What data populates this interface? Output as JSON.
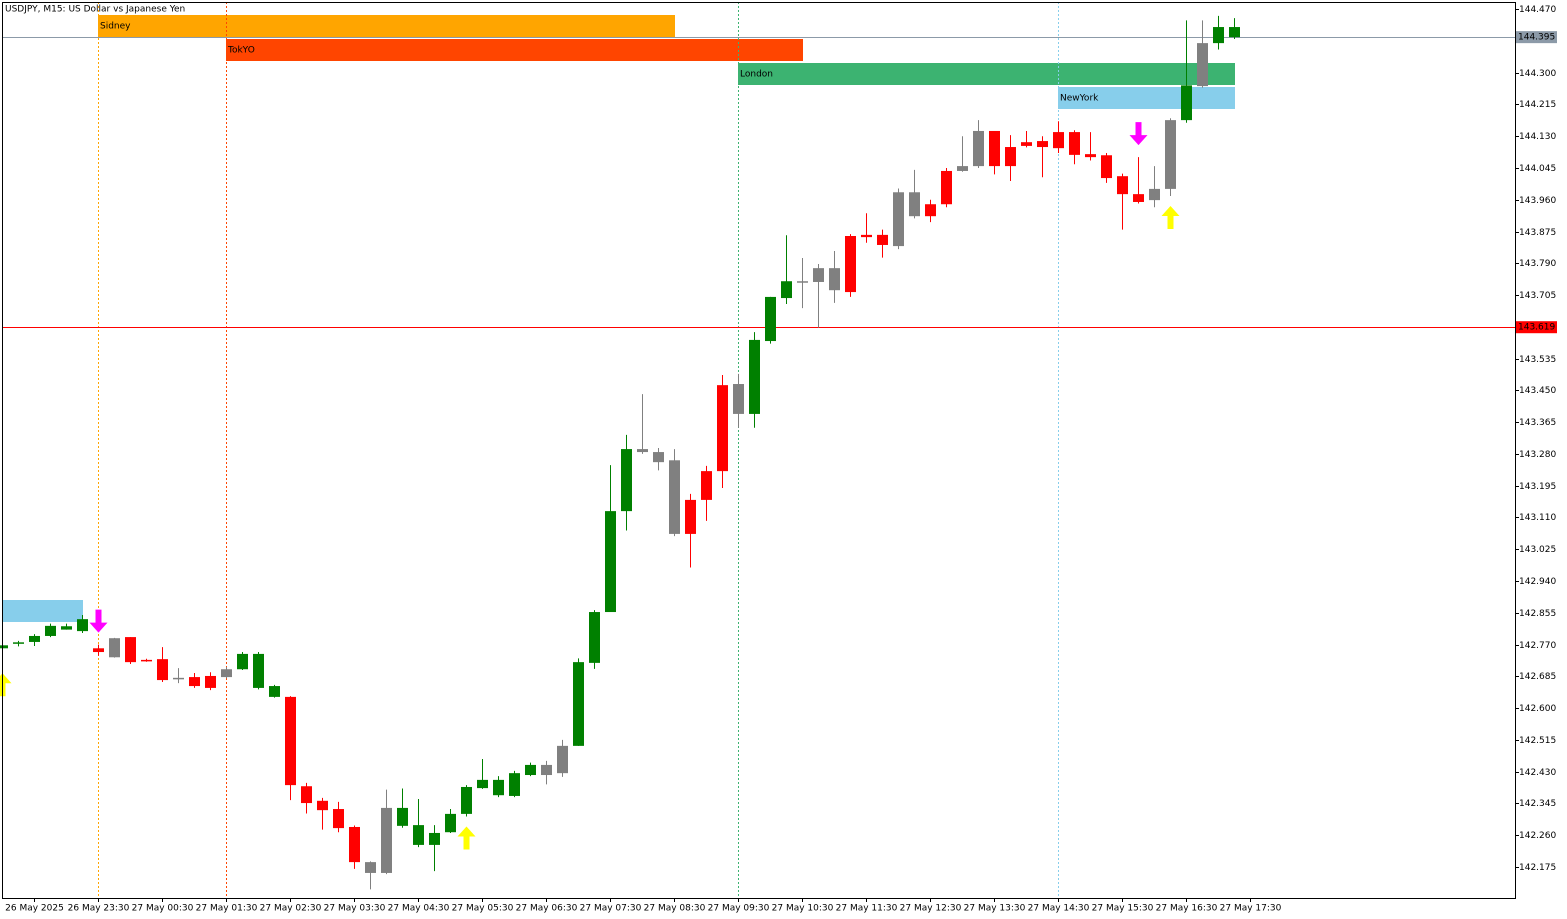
{
  "chart_data": {
    "type": "candlestick",
    "title": "USDJPY, M15:  US Dollar vs Japanese Yen",
    "categories": [
      null,
      null,
      "26 May 2025",
      null,
      null,
      null,
      "26 May 23:30",
      null,
      null,
      null,
      "27 May 00:30",
      null,
      null,
      null,
      "27 May 01:30",
      null,
      null,
      null,
      "27 May 02:30",
      null,
      null,
      null,
      "27 May 03:30",
      null,
      null,
      null,
      "27 May 04:30",
      null,
      null,
      null,
      "27 May 05:30",
      null,
      null,
      null,
      "27 May 06:30",
      null,
      null,
      null,
      "27 May 07:30",
      null,
      null,
      null,
      "27 May 08:30",
      null,
      null,
      null,
      "27 May 09:30",
      null,
      null,
      null,
      "27 May 10:30",
      null,
      null,
      null,
      "27 May 11:30",
      null,
      null,
      null,
      "27 May 12:30",
      null,
      null,
      null,
      "27 May 13:30",
      null,
      null,
      null,
      "27 May 14:30",
      null,
      null,
      null,
      "27 May 15:30",
      null,
      null,
      null,
      "27 May 16:30",
      null,
      null,
      null,
      "27 May 17:30"
    ],
    "open": [
      142.76,
      142.772,
      142.777,
      142.793,
      142.81,
      142.806,
      142.76,
      142.787,
      142.79,
      142.729,
      142.731,
      142.681,
      142.683,
      142.686,
      142.683,
      142.704,
      142.654,
      142.63,
      142.63,
      142.391,
      142.352,
      142.33,
      142.282,
      142.188,
      142.159,
      142.285,
      142.234,
      142.234,
      142.268,
      142.317,
      142.386,
      142.367,
      142.365,
      142.421,
      142.448,
      142.426,
      142.499,
      142.721,
      142.857,
      143.127,
      143.293,
      143.285,
      143.263,
      143.157,
      143.234,
      143.464,
      143.467,
      143.387,
      143.582,
      143.697,
      143.742,
      143.74,
      143.777,
      143.863,
      143.866,
      143.866,
      143.836,
      143.98,
      143.948,
      144.037,
      144.05,
      144.05,
      144.144,
      144.101,
      144.114,
      144.117,
      144.141,
      144.141,
      144.082,
      144.079,
      144.023,
      143.975,
      143.959,
      143.989,
      144.173,
      144.264,
      144.379,
      144.422,
      null
    ],
    "high": [
      142.775,
      142.78,
      142.798,
      142.826,
      142.826,
      142.849,
      142.77,
      142.788,
      142.79,
      142.732,
      142.763,
      142.707,
      142.694,
      142.696,
      142.71,
      142.75,
      142.75,
      142.662,
      142.632,
      142.4,
      142.36,
      142.349,
      142.286,
      142.19,
      142.382,
      142.385,
      142.357,
      142.287,
      142.33,
      142.394,
      142.464,
      142.418,
      142.432,
      142.454,
      142.459,
      142.515,
      142.733,
      142.862,
      143.25,
      143.331,
      143.44,
      143.296,
      143.293,
      143.173,
      143.248,
      143.491,
      143.494,
      143.606,
      143.7,
      143.865,
      143.804,
      143.788,
      143.823,
      143.868,
      143.924,
      143.88,
      143.99,
      144.04,
      143.96,
      144.045,
      144.13,
      144.173,
      144.144,
      144.133,
      144.144,
      144.13,
      144.17,
      144.146,
      144.141,
      144.085,
      144.03,
      144.074,
      144.05,
      144.178,
      144.44,
      144.44,
      144.452,
      144.446,
      null
    ],
    "low": [
      142.72,
      142.765,
      142.766,
      142.79,
      142.81,
      142.801,
      142.74,
      142.735,
      142.718,
      142.724,
      142.67,
      142.667,
      142.654,
      142.648,
      142.68,
      142.702,
      142.65,
      142.628,
      142.354,
      142.318,
      142.275,
      142.268,
      142.17,
      142.115,
      142.156,
      142.28,
      142.228,
      142.164,
      142.266,
      142.31,
      142.384,
      142.362,
      142.362,
      142.418,
      142.396,
      142.416,
      142.499,
      142.705,
      142.857,
      143.075,
      143.28,
      143.236,
      143.06,
      142.976,
      143.101,
      143.189,
      143.35,
      143.35,
      143.575,
      143.681,
      143.67,
      143.618,
      143.684,
      143.7,
      143.845,
      143.805,
      143.828,
      143.91,
      143.9,
      143.94,
      144.035,
      144.045,
      144.028,
      144.01,
      144.1,
      144.02,
      144.085,
      144.055,
      144.065,
      144.005,
      143.88,
      143.95,
      143.94,
      143.97,
      144.166,
      144.26,
      144.362,
      144.39,
      null
    ],
    "close": [
      142.768,
      142.776,
      142.793,
      142.82,
      142.819,
      142.838,
      142.75,
      142.736,
      142.723,
      142.726,
      142.675,
      142.679,
      142.659,
      142.654,
      142.704,
      142.745,
      142.745,
      142.659,
      142.394,
      142.346,
      142.327,
      142.279,
      142.188,
      142.159,
      142.333,
      142.333,
      142.287,
      142.266,
      142.317,
      142.389,
      142.408,
      142.408,
      142.426,
      142.448,
      142.421,
      142.499,
      142.723,
      142.857,
      143.127,
      143.293,
      143.285,
      143.258,
      143.066,
      143.066,
      143.157,
      143.234,
      143.387,
      143.585,
      143.7,
      143.742,
      143.74,
      143.777,
      143.718,
      143.713,
      143.86,
      143.839,
      143.98,
      143.916,
      143.916,
      143.948,
      144.037,
      144.144,
      144.05,
      144.05,
      144.104,
      144.101,
      144.098,
      144.08,
      144.074,
      144.018,
      143.975,
      143.954,
      143.989,
      144.173,
      144.266,
      144.379,
      144.422,
      144.395,
      null
    ],
    "colors": [
      "#008000",
      "#008000",
      "#008000",
      "#008000",
      "#008000",
      "#008000",
      "#ff0000",
      "#808080",
      "#ff0000",
      "#ff0000",
      "#ff0000",
      "#808080",
      "#ff0000",
      "#ff0000",
      "#808080",
      "#008000",
      "#008000",
      "#008000",
      "#ff0000",
      "#ff0000",
      "#ff0000",
      "#ff0000",
      "#ff0000",
      "#808080",
      "#808080",
      "#008000",
      "#008000",
      "#008000",
      "#008000",
      "#008000",
      "#008000",
      "#008000",
      "#008000",
      "#008000",
      "#808080",
      "#808080",
      "#008000",
      "#008000",
      "#008000",
      "#008000",
      "#808080",
      "#808080",
      "#808080",
      "#ff0000",
      "#ff0000",
      "#ff0000",
      "#808080",
      "#008000",
      "#008000",
      "#008000",
      "#808080",
      "#808080",
      "#808080",
      "#ff0000",
      "#ff0000",
      "#ff0000",
      "#808080",
      "#808080",
      "#ff0000",
      "#ff0000",
      "#808080",
      "#808080",
      "#ff0000",
      "#ff0000",
      "#ff0000",
      "#ff0000",
      "#ff0000",
      "#ff0000",
      "#ff0000",
      "#ff0000",
      "#ff0000",
      "#ff0000",
      "#808080",
      "#808080",
      "#008000",
      "#808080",
      "#008000",
      "#008000",
      null
    ],
    "ylim": [
      142.092,
      144.489
    ],
    "yticks": [
      {
        "value": 144.47,
        "label": "144.470"
      },
      {
        "value": 144.3,
        "label": "144.300"
      },
      144.215,
      {
        "value": 144.13,
        "label": "144.130"
      },
      144.045,
      {
        "value": 143.96,
        "label": "143.960"
      },
      143.875,
      {
        "value": 143.79,
        "label": "143.790"
      },
      143.705,
      143.535,
      {
        "value": 143.45,
        "label": "143.450"
      },
      143.365,
      {
        "value": 143.28,
        "label": "143.280"
      },
      143.195,
      {
        "value": 143.11,
        "label": "143.110"
      },
      143.025,
      {
        "value": 142.94,
        "label": "142.940"
      },
      142.855,
      {
        "value": 142.77,
        "label": "142.770"
      },
      142.685,
      {
        "value": 142.6,
        "label": "142.600"
      },
      142.515,
      {
        "value": 142.43,
        "label": "142.430"
      },
      142.345,
      {
        "value": 142.26,
        "label": "142.260"
      },
      142.175
    ],
    "price_lines": [
      {
        "value": 144.395,
        "color": "#8c9aa8"
      },
      {
        "value": 143.619,
        "color": "#ff0000"
      }
    ],
    "sessions": [
      {
        "name": "Sidney",
        "color": "#ffa500",
        "start": 6,
        "end": 42
      },
      {
        "name": "TokYO",
        "color": "#ff4500",
        "start": 14,
        "end": 50
      },
      {
        "name": "London",
        "color": "#3cb371",
        "start": 46,
        "end": 77
      },
      {
        "name": "NewYork",
        "color": "#87ceeb",
        "start": 66,
        "end": 77
      }
    ],
    "signals": [
      {
        "index": 0,
        "direction": "up",
        "color": "#ffff00"
      },
      {
        "index": 6,
        "direction": "down",
        "color": "#ff00ff"
      },
      {
        "index": 29,
        "direction": "up",
        "color": "#ffff00"
      },
      {
        "index": 71,
        "direction": "down",
        "color": "#ff00ff"
      },
      {
        "index": 73,
        "direction": "up",
        "color": "#ffff00"
      }
    ]
  }
}
